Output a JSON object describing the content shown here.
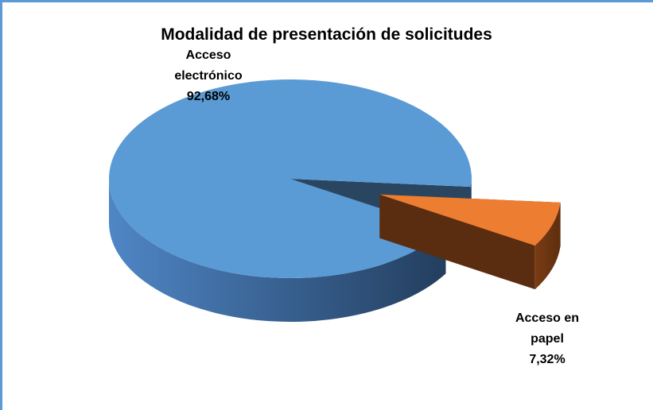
{
  "chart_data": {
    "type": "pie",
    "title": "Modalidad de presentación de solicitudes",
    "categories": [
      "Acceso electrónico",
      "Acceso en papel"
    ],
    "values": [
      92.68,
      7.32
    ],
    "value_labels": [
      "92,68%",
      "7,32%"
    ],
    "colors": [
      "#5b9bd5",
      "#ed7d31"
    ]
  }
}
